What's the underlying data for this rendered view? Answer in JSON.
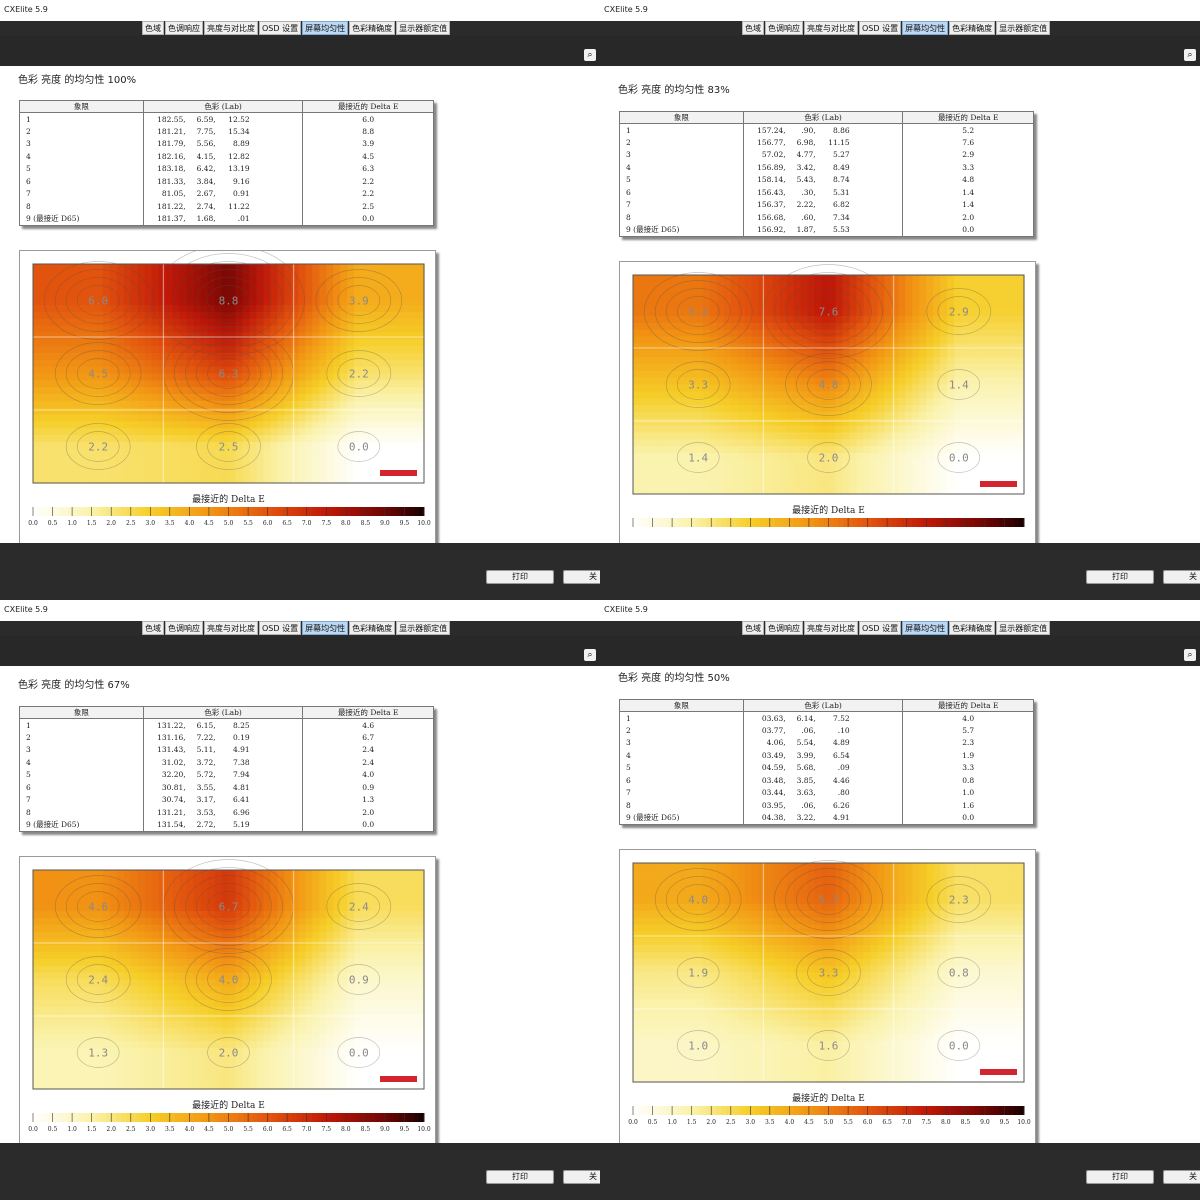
{
  "window_title": "CXElite 5.9",
  "tabs": [
    "色域",
    "色调响应",
    "亮度与对比度",
    "OSD 设置",
    "屏幕均匀性",
    "色彩精确度",
    "显示器额定值"
  ],
  "active_tab": "屏幕均匀性",
  "buttons": {
    "print": "打印",
    "close": "关"
  },
  "table_headers": [
    "象限",
    "色彩 (Lab)",
    "最接近的 Delta E"
  ],
  "colorbar_label": "最接近的 Delta E",
  "colorbar_ticks": [
    "0.0",
    "0.5",
    "1.0",
    "1.5",
    "2.0",
    "2.5",
    "3.0",
    "3.5",
    "4.0",
    "4.5",
    "5.0",
    "5.5",
    "6.0",
    "6.5",
    "7.0",
    "7.5",
    "8.0",
    "8.5",
    "9.0",
    "9.5",
    "10.0"
  ],
  "colors": {
    "accent_tab": "#bcd8f2",
    "chrome_dark": "#2b2b2b",
    "legend_mark": "#d42430"
  },
  "panels": [
    {
      "title": "色彩 亮度 的均匀性 100%",
      "rows": [
        {
          "quad": "1",
          "L": "182.55,",
          "a": "6.59,",
          "b": "12.52",
          "de": "6.0"
        },
        {
          "quad": "2",
          "L": "181.21,",
          "a": "7.75,",
          "b": "15.34",
          "de": "8.8"
        },
        {
          "quad": "3",
          "L": "181.79,",
          "a": "5.56,",
          "b": "8.89",
          "de": "3.9"
        },
        {
          "quad": "4",
          "L": "182.16,",
          "a": "4.15,",
          "b": "12.82",
          "de": "4.5"
        },
        {
          "quad": "5",
          "L": "183.18,",
          "a": "6.42,",
          "b": "13.19",
          "de": "6.3"
        },
        {
          "quad": "6",
          "L": "181.33,",
          "a": "3.84,",
          "b": "9.16",
          "de": "2.2"
        },
        {
          "quad": "7",
          "L": "81.05,",
          "a": "2.67,",
          "b": "0.91",
          "de": "2.2"
        },
        {
          "quad": "8",
          "L": "181.22,",
          "a": "2.74,",
          "b": "11.22",
          "de": "2.5"
        },
        {
          "quad": "9 (最接近 D65)",
          "L": "181.37,",
          "a": "1.68,",
          "b": ".01",
          "de": "0.0"
        }
      ],
      "grid": [
        [
          "6.0",
          "8.8",
          "3.9"
        ],
        [
          "4.5",
          "6.3",
          "2.2"
        ],
        [
          "2.2",
          "2.5",
          "0.0"
        ]
      ],
      "show_colorbar_ticks": true
    },
    {
      "title": "色彩 亮度 的均匀性 83%",
      "rows": [
        {
          "quad": "1",
          "L": "157.24,",
          "a": ".90,",
          "b": "8.86",
          "de": "5.2"
        },
        {
          "quad": "2",
          "L": "156.77,",
          "a": "6.98,",
          "b": "11.15",
          "de": "7.6"
        },
        {
          "quad": "3",
          "L": "57.02,",
          "a": "4.77,",
          "b": "5.27",
          "de": "2.9"
        },
        {
          "quad": "4",
          "L": "156.89,",
          "a": "3.42,",
          "b": "8.49",
          "de": "3.3"
        },
        {
          "quad": "5",
          "L": "158.14,",
          "a": "5.43,",
          "b": "8.74",
          "de": "4.8"
        },
        {
          "quad": "6",
          "L": "156.43,",
          "a": ".30,",
          "b": "5.31",
          "de": "1.4"
        },
        {
          "quad": "7",
          "L": "156.37,",
          "a": "2.22,",
          "b": "6.82",
          "de": "1.4"
        },
        {
          "quad": "8",
          "L": "156.68,",
          "a": ".60,",
          "b": "7.34",
          "de": "2.0"
        },
        {
          "quad": "9 (最接近 D65)",
          "L": "156.92,",
          "a": "1.87,",
          "b": "5.53",
          "de": "0.0"
        }
      ],
      "grid": [
        [
          "5.2",
          "7.6",
          "2.9"
        ],
        [
          "3.3",
          "4.8",
          "1.4"
        ],
        [
          "1.4",
          "2.0",
          "0.0"
        ]
      ],
      "show_colorbar_ticks": false
    },
    {
      "title": "色彩 亮度 的均匀性 67%",
      "rows": [
        {
          "quad": "1",
          "L": "131.22,",
          "a": "6.15,",
          "b": "8.25",
          "de": "4.6"
        },
        {
          "quad": "2",
          "L": "131.16,",
          "a": "7.22,",
          "b": "0.19",
          "de": "6.7"
        },
        {
          "quad": "3",
          "L": "131.43,",
          "a": "5.11,",
          "b": "4.91",
          "de": "2.4"
        },
        {
          "quad": "4",
          "L": "31.02,",
          "a": "3.72,",
          "b": "7.38",
          "de": "2.4"
        },
        {
          "quad": "5",
          "L": "32.20,",
          "a": "5.72,",
          "b": "7.94",
          "de": "4.0"
        },
        {
          "quad": "6",
          "L": "30.81,",
          "a": "3.55,",
          "b": "4.81",
          "de": "0.9"
        },
        {
          "quad": "7",
          "L": "30.74,",
          "a": "3.17,",
          "b": "6.41",
          "de": "1.3"
        },
        {
          "quad": "8",
          "L": "131.21,",
          "a": "3.53,",
          "b": "6.96",
          "de": "2.0"
        },
        {
          "quad": "9 (最接近 D65)",
          "L": "131.54,",
          "a": "2.72,",
          "b": "5.19",
          "de": "0.0"
        }
      ],
      "grid": [
        [
          "4.6",
          "6.7",
          "2.4"
        ],
        [
          "2.4",
          "4.0",
          "0.9"
        ],
        [
          "1.3",
          "2.0",
          "0.0"
        ]
      ],
      "show_colorbar_ticks": true
    },
    {
      "title": "色彩 亮度 的均匀性 50%",
      "rows": [
        {
          "quad": "1",
          "L": "03.63,",
          "a": "6.14,",
          "b": "7.52",
          "de": "4.0"
        },
        {
          "quad": "2",
          "L": "03.77,",
          "a": ".06,",
          "b": ".10",
          "de": "5.7"
        },
        {
          "quad": "3",
          "L": "4.06,",
          "a": "5.54,",
          "b": "4.89",
          "de": "2.3"
        },
        {
          "quad": "4",
          "L": "03.49,",
          "a": "3.99,",
          "b": "6.54",
          "de": "1.9"
        },
        {
          "quad": "5",
          "L": "04.59,",
          "a": "5.68,",
          "b": ".09",
          "de": "3.3"
        },
        {
          "quad": "6",
          "L": "03.48,",
          "a": "3.85,",
          "b": "4.46",
          "de": "0.8"
        },
        {
          "quad": "7",
          "L": "03.44,",
          "a": "3.63,",
          "b": ".80",
          "de": "1.0"
        },
        {
          "quad": "8",
          "L": "03.95,",
          "a": ".06,",
          "b": "6.26",
          "de": "1.6"
        },
        {
          "quad": "9 (最接近 D65)",
          "L": "04.38,",
          "a": "3.22,",
          "b": "4.91",
          "de": "0.0"
        }
      ],
      "grid": [
        [
          "4.0",
          "5.7",
          "2.3"
        ],
        [
          "1.9",
          "3.3",
          "0.8"
        ],
        [
          "1.0",
          "1.6",
          "0.0"
        ]
      ],
      "show_colorbar_ticks": true
    }
  ]
}
